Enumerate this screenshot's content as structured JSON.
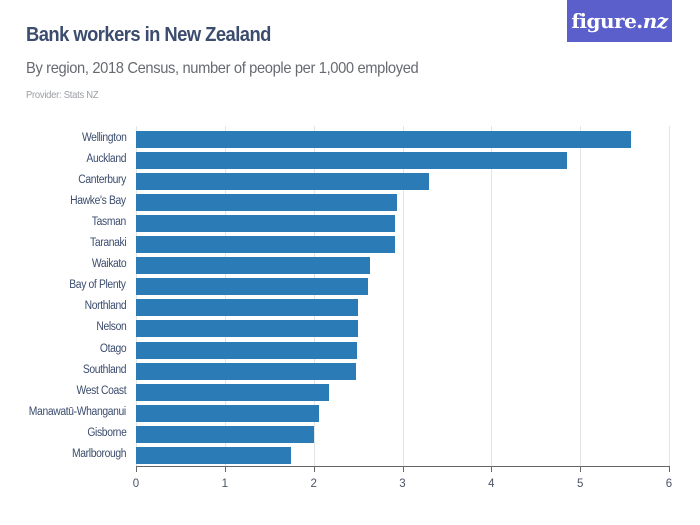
{
  "header": {
    "title": "Bank workers in New Zealand",
    "subtitle": "By region, 2018 Census, number of people per 1,000 employed",
    "provider": "Provider: Stats NZ"
  },
  "logo": {
    "text_main": "figure.",
    "text_accent": "nz",
    "bg_color": "#5b5fcb"
  },
  "colors": {
    "bar": "#2b7bb6",
    "title": "#3b4c6e",
    "grid": "#e4e4e4"
  },
  "chart_data": {
    "type": "bar",
    "orientation": "horizontal",
    "title": "Bank workers in New Zealand",
    "subtitle": "By region, 2018 Census, number of people per 1,000 employed",
    "xlabel": "",
    "ylabel": "",
    "xlim": [
      0,
      6
    ],
    "x_ticks": [
      "0",
      "1",
      "2",
      "3",
      "4",
      "5",
      "6"
    ],
    "grid": true,
    "legend": null,
    "categories": [
      "Wellington",
      "Auckland",
      "Canterbury",
      "Hawke's Bay",
      "Tasman",
      "Taranaki",
      "Waikato",
      "Bay of Plenty",
      "Northland",
      "Nelson",
      "Otago",
      "Southland",
      "West Coast",
      "Manawatū-Whanganui",
      "Gisborne",
      "Marlborough"
    ],
    "values": [
      5.57,
      4.85,
      3.3,
      2.94,
      2.92,
      2.91,
      2.63,
      2.61,
      2.5,
      2.5,
      2.49,
      2.48,
      2.17,
      2.06,
      2.0,
      1.75
    ]
  }
}
